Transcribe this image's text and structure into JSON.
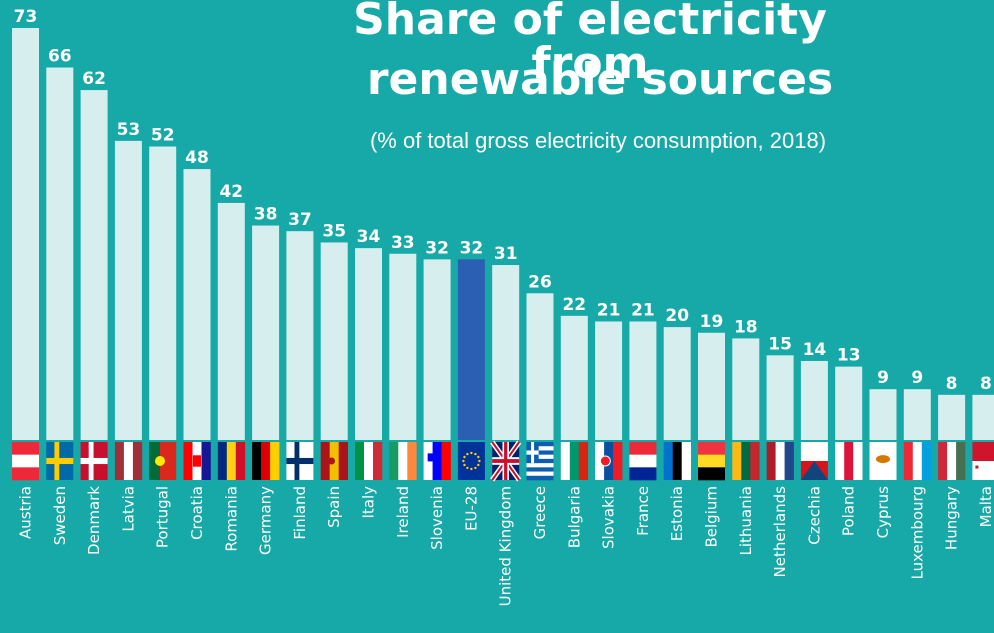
{
  "title_line_1": "Share of electricity from",
  "title_line_2": "renewable sources",
  "subtitle": "(% of total gross electricity consumption, 2018)",
  "colors": {
    "background": "#17a9a7",
    "bar": "#d6eeee",
    "highlight_bar": "#2b5fb3"
  },
  "chart_data": {
    "type": "bar",
    "title": "Share of electricity from renewable sources",
    "subtitle": "(% of total gross electricity consumption, 2018)",
    "categories": [
      "Austria",
      "Sweden",
      "Denmark",
      "Latvia",
      "Portugal",
      "Croatia",
      "Romania",
      "Germany",
      "Finland",
      "Spain",
      "Italy",
      "Ireland",
      "Slovenia",
      "EU-28",
      "United Kingdom",
      "Greece",
      "Bulgaria",
      "Slovakia",
      "France",
      "Estonia",
      "Belgium",
      "Lithuania",
      "Netherlands",
      "Czechia",
      "Poland",
      "Cyprus",
      "Luxembourg",
      "Hungary",
      "Malta"
    ],
    "values": [
      73,
      66,
      62,
      53,
      52,
      48,
      42,
      38,
      37,
      35,
      34,
      33,
      32,
      32,
      31,
      26,
      22,
      21,
      21,
      20,
      19,
      18,
      15,
      14,
      13,
      9,
      9,
      8,
      8
    ],
    "highlight": "EU-28",
    "ylim": [
      0,
      73
    ],
    "xlabel": "",
    "ylabel": "",
    "grid": false,
    "legend": "none"
  }
}
